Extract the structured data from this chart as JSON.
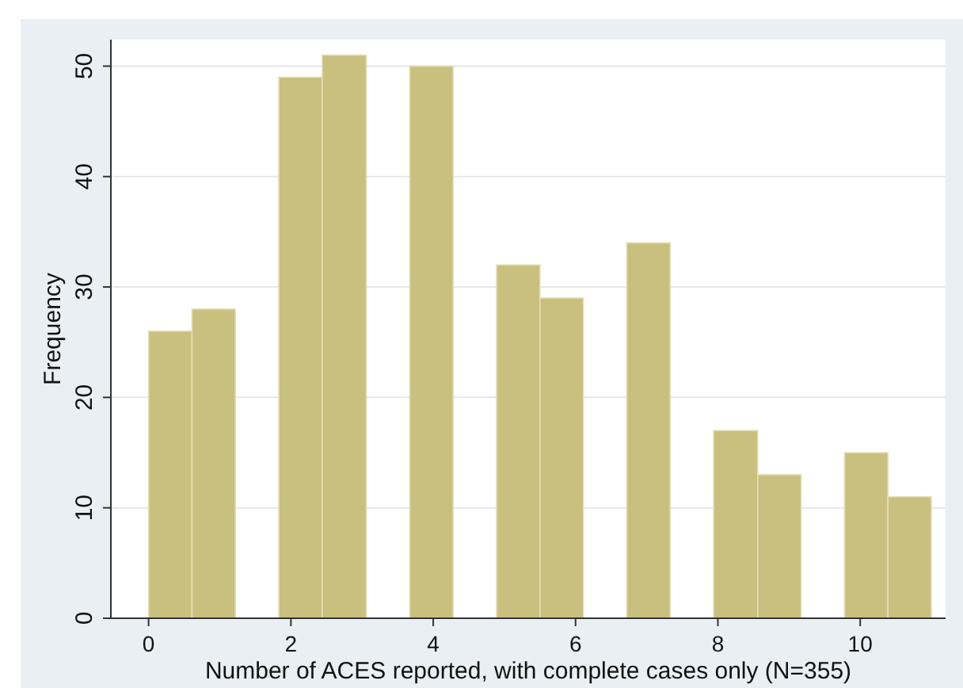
{
  "chart_data": {
    "type": "histogram",
    "xlabel": "Number of ACES reported, with complete cases only (N=355)",
    "ylabel": "Frequency",
    "bins": [
      0,
      0.61,
      1.22,
      1.83,
      2.44,
      3.06,
      3.67,
      4.28,
      4.89,
      5.5,
      6.11,
      6.72,
      7.33,
      7.94,
      8.56,
      9.17,
      9.78,
      10.39,
      11
    ],
    "values": [
      26,
      28,
      0,
      49,
      51,
      0,
      50,
      0,
      32,
      29,
      0,
      34,
      0,
      17,
      13,
      0,
      15,
      11
    ],
    "color": "#c9bf7f",
    "xlim": [
      -0.53,
      11.2
    ],
    "ylim": [
      0,
      52.4
    ],
    "xticks": [
      0,
      2,
      4,
      6,
      8,
      10
    ],
    "yticks": [
      0,
      10,
      20,
      30,
      40,
      50
    ],
    "grid": "y"
  }
}
